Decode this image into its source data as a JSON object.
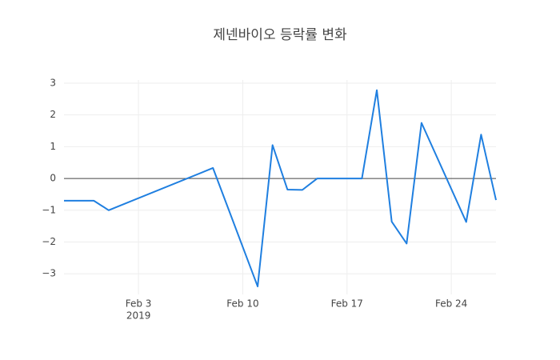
{
  "chart_data": {
    "type": "line",
    "title": "제넨바이오 등락률 변화",
    "x": [
      "2019-01-29",
      "2019-01-31",
      "2019-02-01",
      "2019-02-08",
      "2019-02-11",
      "2019-02-12",
      "2019-02-13",
      "2019-02-14",
      "2019-02-15",
      "2019-02-18",
      "2019-02-19",
      "2019-02-20",
      "2019-02-21",
      "2019-02-22",
      "2019-02-25",
      "2019-02-26",
      "2019-02-27"
    ],
    "series": [
      {
        "color": "#1f7fe0",
        "values": [
          -0.7,
          -0.7,
          -1.0,
          0.33,
          -3.4,
          1.05,
          -0.35,
          -0.36,
          0,
          0,
          2.78,
          -1.36,
          -2.05,
          1.75,
          -1.37,
          1.38,
          -0.68
        ]
      }
    ],
    "xlim": [
      "2019-01-29",
      "2019-02-27"
    ],
    "xticks": [
      {
        "value": "2019-02-03",
        "label": "Feb 3"
      },
      {
        "value": "2019-02-10",
        "label": "Feb 10"
      },
      {
        "value": "2019-02-17",
        "label": "Feb 17"
      },
      {
        "value": "2019-02-24",
        "label": "Feb 24"
      }
    ],
    "x_year_label": "2019",
    "ylim": [
      -3.65,
      3.1
    ],
    "yticks": [
      {
        "value": -3,
        "label": "−3"
      },
      {
        "value": -2,
        "label": "−2"
      },
      {
        "value": -1,
        "label": "−1"
      },
      0,
      1,
      2,
      3
    ],
    "grid": true,
    "zeroline": true
  }
}
